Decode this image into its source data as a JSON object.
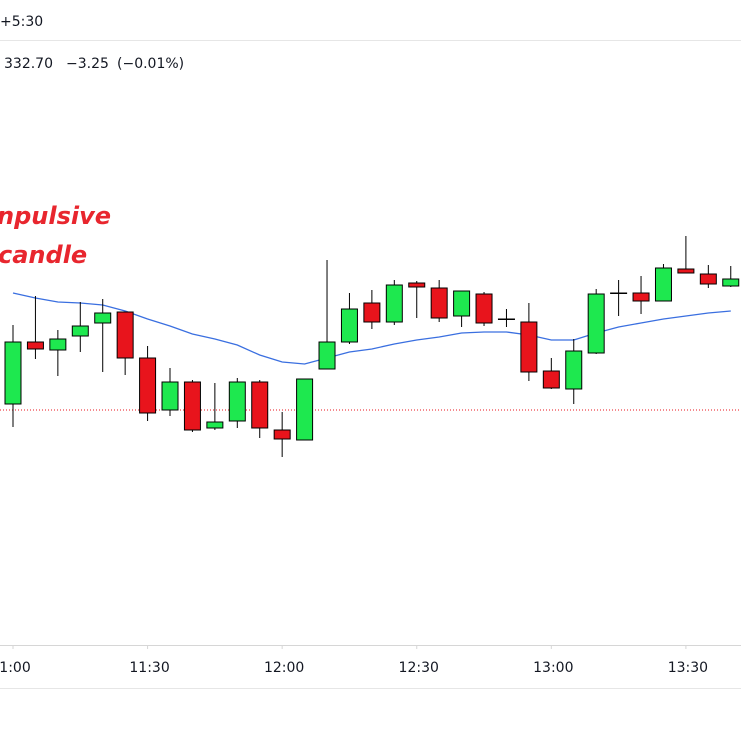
{
  "chart_data": {
    "type": "candlestick",
    "timezone": "+5:30",
    "price": "332.70",
    "change": "−3.25",
    "change_percent": "(−0.01%)",
    "annotation": [
      "npulsive",
      "candle"
    ],
    "up_color": "#1ee84f",
    "down_color": "#e8141c",
    "ma_color": "#3a6fe0",
    "reference_color": "#e8141c",
    "ylim": [
      0,
      645
    ],
    "xticks": [
      {
        "value": 0,
        "label": "1:00"
      },
      {
        "value": 6,
        "label": "11:30"
      },
      {
        "value": 12,
        "label": "12:00"
      },
      {
        "value": 18,
        "label": "12:30"
      },
      {
        "value": 24,
        "label": "13:00"
      },
      {
        "value": 30,
        "label": "13:30"
      }
    ],
    "reference_line": 235,
    "open": [
      241,
      303,
      295,
      309,
      322,
      333,
      287,
      235,
      263,
      217,
      224,
      263,
      215,
      205,
      276,
      303,
      342,
      323,
      362,
      357,
      329,
      351,
      326,
      323,
      274,
      256,
      292,
      352,
      352,
      344,
      376,
      371,
      359
    ],
    "high": [
      320,
      349,
      315,
      343,
      346,
      333,
      299,
      277,
      265,
      262,
      267,
      265,
      233,
      266,
      385,
      352,
      355,
      365,
      364,
      365,
      354,
      353,
      336,
      342,
      287,
      306,
      356,
      365,
      369,
      381,
      409,
      380,
      379
    ],
    "low": [
      218,
      286,
      269,
      293,
      273,
      270,
      224,
      229,
      213,
      215,
      217,
      207,
      188,
      205,
      276,
      301,
      316,
      320,
      327,
      323,
      318,
      319,
      318,
      264,
      256,
      241,
      291,
      329,
      331,
      344,
      372,
      357,
      358
    ],
    "close": [
      303,
      296,
      306,
      319,
      332,
      287,
      232,
      263,
      215,
      223,
      263,
      217,
      206,
      266,
      303,
      336,
      323,
      360,
      358,
      327,
      354,
      322,
      326,
      273,
      257,
      294,
      351,
      352,
      344,
      377,
      372,
      361,
      366
    ],
    "ma": [
      352,
      347,
      343,
      342,
      340,
      334,
      326,
      319,
      311,
      306,
      300,
      290,
      283,
      281,
      287,
      293,
      296,
      301,
      305,
      308,
      312,
      313,
      313,
      310,
      305,
      305,
      312,
      318,
      322,
      326,
      329,
      332,
      334
    ]
  }
}
